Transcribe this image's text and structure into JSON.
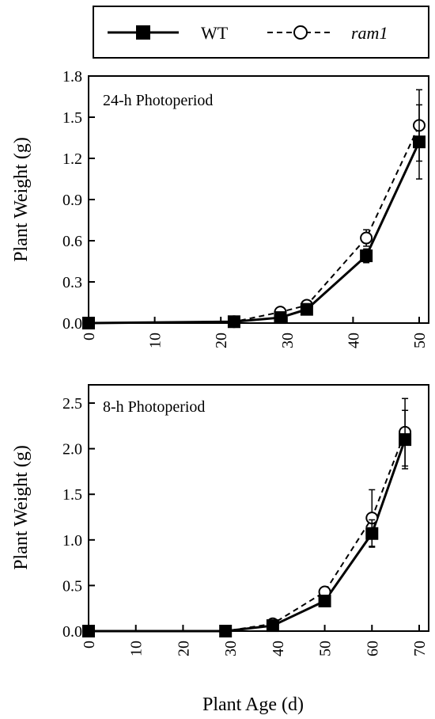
{
  "legend": {
    "entries": [
      {
        "label": "WT",
        "marker": "filled-square",
        "line": "solid"
      },
      {
        "label": "ram1",
        "marker": "open-circle",
        "line": "dashed"
      }
    ]
  },
  "x_axis_label": "Plant Age (d)",
  "chart_data": [
    {
      "type": "line",
      "title": "24-h  Photoperiod",
      "xlabel": "Plant Age (d)",
      "ylabel": "Plant  Weight  (g)",
      "xlim": [
        0,
        50
      ],
      "ylim": [
        0,
        1.8
      ],
      "xticks": [
        "0",
        "10",
        "20",
        "30",
        "40",
        "50"
      ],
      "yticks": [
        "0.0",
        "0.3",
        "0.6",
        "0.9",
        "1.2",
        "1.5",
        "1.8"
      ],
      "series": [
        {
          "name": "WT",
          "x": [
            0,
            22,
            29,
            33,
            42,
            50
          ],
          "y": [
            0.0,
            0.01,
            0.04,
            0.1,
            0.49,
            1.32
          ],
          "err": [
            0,
            0,
            0,
            0.02,
            0.05,
            0.27
          ]
        },
        {
          "name": "ram1",
          "x": [
            0,
            22,
            29,
            33,
            42,
            50
          ],
          "y": [
            0.0,
            0.01,
            0.08,
            0.13,
            0.62,
            1.44
          ],
          "err": [
            0,
            0,
            0,
            0.02,
            0.06,
            0.26
          ]
        }
      ]
    },
    {
      "type": "line",
      "title": "8-h  Photoperiod",
      "xlabel": "Plant Age (d)",
      "ylabel": "Plant  Weight  (g)",
      "xlim": [
        0,
        70
      ],
      "ylim": [
        0,
        2.7
      ],
      "xticks": [
        "0",
        "10",
        "20",
        "30",
        "40",
        "50",
        "60",
        "70"
      ],
      "yticks": [
        "0.0",
        "0.5",
        "1.0",
        "1.5",
        "2.0",
        "2.5"
      ],
      "series": [
        {
          "name": "WT",
          "x": [
            0,
            29,
            39,
            50,
            60,
            67
          ],
          "y": [
            0.0,
            0.0,
            0.06,
            0.33,
            1.07,
            2.1
          ],
          "err": [
            0,
            0,
            0,
            0.02,
            0.15,
            0.32
          ]
        },
        {
          "name": "ram1",
          "x": [
            0,
            29,
            39,
            50,
            60,
            67
          ],
          "y": [
            0.0,
            0.0,
            0.08,
            0.43,
            1.24,
            2.18
          ],
          "err": [
            0,
            0,
            0,
            0.02,
            0.31,
            0.37
          ]
        }
      ]
    }
  ]
}
